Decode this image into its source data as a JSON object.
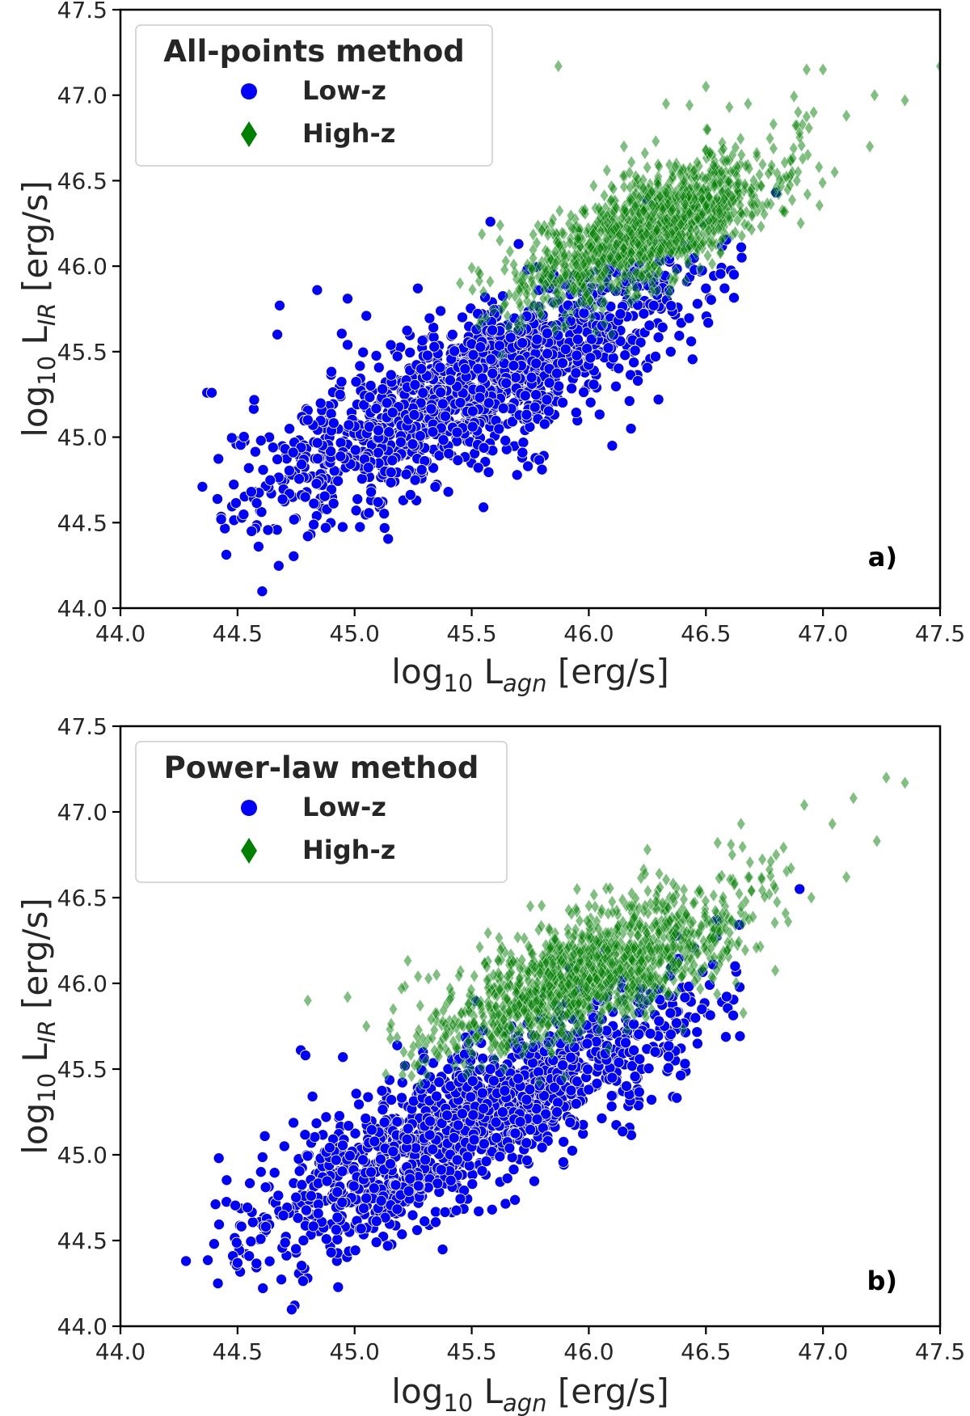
{
  "colors": {
    "low_z": "#0000ff",
    "high_z": "#008000",
    "axis": "#000000",
    "text": "#262626",
    "legend_border": "#cccccc"
  },
  "chart_data": [
    {
      "type": "scatter",
      "panel_label": "a)",
      "legend_title": "All-points method",
      "xlabel": {
        "base": "log",
        "sub": "10",
        "mid": " L",
        "sub2": "agn",
        "unit": " [erg/s]"
      },
      "ylabel": {
        "base": "log",
        "sub": "10",
        "mid": " L",
        "sub2": "IR",
        "unit": " [erg/s]"
      },
      "xlim": [
        44.0,
        47.5
      ],
      "ylim": [
        44.0,
        47.5
      ],
      "xticks": [
        44.0,
        44.5,
        45.0,
        45.5,
        46.0,
        46.5,
        47.0,
        47.5
      ],
      "yticks": [
        44.0,
        44.5,
        45.0,
        45.5,
        46.0,
        46.5,
        47.0,
        47.5
      ],
      "xtick_labels": [
        "44.0",
        "44.5",
        "45.0",
        "45.5",
        "46.0",
        "46.5",
        "47.0",
        "47.5"
      ],
      "ytick_labels": [
        "44.0",
        "44.5",
        "45.0",
        "45.5",
        "46.0",
        "46.5",
        "47.0",
        "47.5"
      ],
      "legend_location": "upper-left",
      "series": [
        {
          "name": "Low-z",
          "marker": "circle",
          "color": "#0000ff",
          "distribution": {
            "x_range": [
              44.5,
              46.6
            ],
            "slope": 0.64,
            "intercept": 45.15,
            "pivot": 45.3,
            "spread": 0.22,
            "count": 1400
          },
          "points": [
            [
              44.37,
              45.26
            ],
            [
              44.39,
              45.26
            ],
            [
              44.68,
              45.77
            ],
            [
              44.67,
              45.6
            ],
            [
              44.84,
              45.86
            ],
            [
              45.27,
              45.87
            ],
            [
              45.52,
              45.63
            ],
            [
              45.55,
              44.59
            ],
            [
              45.58,
              46.26
            ],
            [
              45.7,
              46.13
            ],
            [
              46.5,
              45.87
            ],
            [
              46.8,
              46.43
            ],
            [
              46.1,
              44.95
            ],
            [
              45.8,
              44.81
            ],
            [
              45.74,
              44.83
            ],
            [
              44.56,
              44.45
            ],
            [
              44.59,
              44.36
            ],
            [
              44.35,
              44.71
            ],
            [
              44.43,
              44.52
            ],
            [
              44.8,
              44.42
            ],
            [
              44.97,
              45.54
            ],
            [
              44.97,
              45.81
            ],
            [
              45.1,
              44.62
            ],
            [
              46.18,
              45.05
            ],
            [
              45.85,
              45.95
            ],
            [
              46.35,
              45.5
            ],
            [
              44.6,
              44.98
            ],
            [
              44.8,
              45.1
            ],
            [
              45.05,
              45.71
            ],
            [
              45.4,
              44.68
            ]
          ]
        },
        {
          "name": "High-z",
          "marker": "diamond",
          "color": "#008000",
          "distribution": {
            "x_range": [
              45.6,
              46.9
            ],
            "slope": 0.58,
            "intercept": 46.18,
            "pivot": 46.2,
            "spread": 0.16,
            "count": 1300
          },
          "points": [
            [
              45.87,
              47.17
            ],
            [
              46.93,
              47.15
            ],
            [
              47.0,
              47.15
            ],
            [
              47.5,
              47.17
            ],
            [
              47.35,
              46.97
            ],
            [
              47.22,
              47.0
            ],
            [
              46.96,
              46.9
            ],
            [
              46.68,
              46.95
            ],
            [
              46.6,
              46.93
            ],
            [
              47.2,
              46.7
            ],
            [
              47.05,
              46.55
            ],
            [
              46.9,
              46.78
            ],
            [
              45.55,
              45.85
            ],
            [
              45.5,
              45.99
            ],
            [
              45.45,
              45.9
            ],
            [
              45.62,
              46.15
            ],
            [
              46.33,
              46.95
            ],
            [
              46.5,
              47.05
            ],
            [
              47.1,
              46.88
            ],
            [
              46.15,
              46.7
            ]
          ]
        }
      ]
    },
    {
      "type": "scatter",
      "panel_label": "b)",
      "legend_title": "Power-law method",
      "xlabel": {
        "base": "log",
        "sub": "10",
        "mid": " L",
        "sub2": "agn",
        "unit": " [erg/s]"
      },
      "ylabel": {
        "base": "log",
        "sub": "10",
        "mid": " L",
        "sub2": "IR",
        "unit": " [erg/s]"
      },
      "xlim": [
        44.0,
        47.5
      ],
      "ylim": [
        44.0,
        47.5
      ],
      "xticks": [
        44.0,
        44.5,
        45.0,
        45.5,
        46.0,
        46.5,
        47.0,
        47.5
      ],
      "yticks": [
        44.0,
        44.5,
        45.0,
        45.5,
        46.0,
        46.5,
        47.0,
        47.5
      ],
      "xtick_labels": [
        "44.0",
        "44.5",
        "45.0",
        "45.5",
        "46.0",
        "46.5",
        "47.0",
        "47.5"
      ],
      "ytick_labels": [
        "44.0",
        "44.5",
        "45.0",
        "45.5",
        "46.0",
        "46.5",
        "47.0",
        "47.5"
      ],
      "legend_location": "upper-left",
      "series": [
        {
          "name": "Low-z",
          "marker": "circle",
          "color": "#0000ff",
          "distribution": {
            "x_range": [
              44.45,
              46.55
            ],
            "slope": 0.66,
            "intercept": 45.05,
            "pivot": 45.3,
            "spread": 0.21,
            "count": 1400
          },
          "points": [
            [
              44.28,
              44.38
            ],
            [
              44.42,
              44.98
            ],
            [
              44.77,
              45.61
            ],
            [
              44.79,
              45.58
            ],
            [
              44.95,
              45.57
            ],
            [
              44.82,
              45.34
            ],
            [
              44.4,
              44.48
            ],
            [
              44.48,
              44.41
            ],
            [
              44.5,
              44.37
            ],
            [
              44.9,
              44.43
            ],
            [
              45.55,
              45.27
            ],
            [
              46.07,
              45.59
            ],
            [
              45.58,
              45.5
            ],
            [
              45.46,
              45.45
            ],
            [
              46.1,
              45.45
            ],
            [
              46.3,
              45.78
            ],
            [
              46.53,
              46.11
            ],
            [
              46.9,
              46.55
            ],
            [
              44.6,
              44.9
            ],
            [
              44.7,
              45.05
            ]
          ]
        },
        {
          "name": "High-z",
          "marker": "diamond",
          "color": "#008000",
          "distribution": {
            "x_range": [
              45.2,
              46.8
            ],
            "slope": 0.5,
            "intercept": 46.05,
            "pivot": 46.0,
            "spread": 0.17,
            "count": 1300
          },
          "points": [
            [
              47.27,
              47.2
            ],
            [
              47.35,
              47.17
            ],
            [
              47.13,
              47.08
            ],
            [
              47.04,
              46.93
            ],
            [
              46.92,
              47.04
            ],
            [
              46.65,
              46.93
            ],
            [
              47.23,
              46.83
            ],
            [
              47.1,
              46.62
            ],
            [
              46.95,
              46.5
            ],
            [
              44.8,
              45.9
            ],
            [
              44.97,
              45.92
            ],
            [
              45.05,
              45.75
            ],
            [
              45.28,
              45.87
            ],
            [
              45.2,
              45.97
            ],
            [
              45.35,
              46.05
            ],
            [
              46.25,
              46.78
            ],
            [
              46.55,
              46.82
            ],
            [
              45.95,
              46.55
            ],
            [
              45.75,
              46.45
            ],
            [
              46.8,
              46.75
            ]
          ]
        }
      ]
    }
  ]
}
